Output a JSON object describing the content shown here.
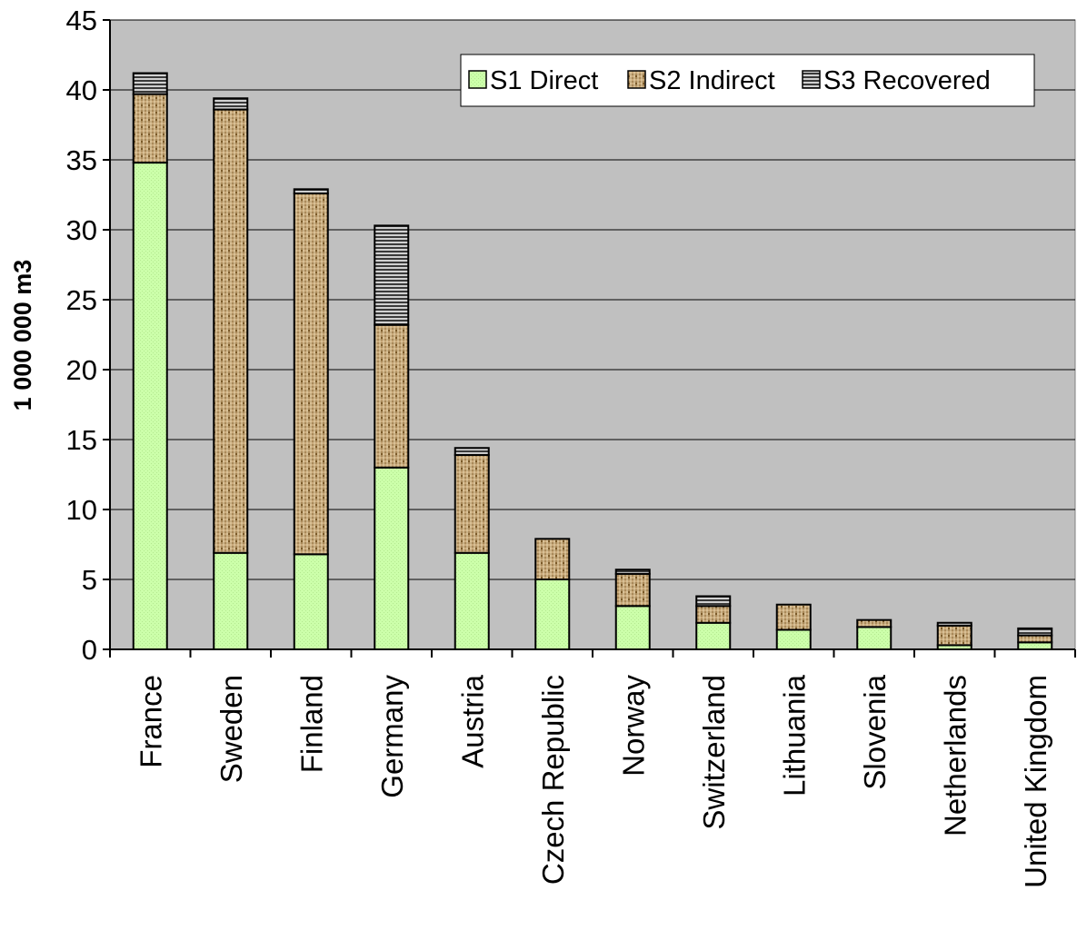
{
  "chart_data": {
    "type": "bar",
    "stacked": true,
    "title": "",
    "xlabel": "",
    "ylabel": "1 000 000 m3",
    "ylim": [
      0,
      45
    ],
    "yticks": [
      0,
      5,
      10,
      15,
      20,
      25,
      30,
      35,
      40,
      45
    ],
    "grid": true,
    "legend_position": "top-right",
    "categories": [
      "France",
      "Sweden",
      "Finland",
      "Germany",
      "Austria",
      "Czech Republic",
      "Norway",
      "Switzerland",
      "Lithuania",
      "Slovenia",
      "Netherlands",
      "United Kingdom"
    ],
    "series": [
      {
        "name": "S1 Direct",
        "color": "#ccffaa",
        "values": [
          34.8,
          6.9,
          6.8,
          13.0,
          6.9,
          5.0,
          3.1,
          1.9,
          1.4,
          1.6,
          0.3,
          0.5
        ]
      },
      {
        "name": "S2 Indirect",
        "color": "#c8a878",
        "values": [
          4.9,
          31.7,
          25.8,
          10.2,
          7.0,
          2.9,
          2.3,
          1.2,
          1.8,
          0.5,
          1.4,
          0.5
        ]
      },
      {
        "name": "S3 Recovered",
        "color": "#8c8c8c",
        "values": [
          1.5,
          0.8,
          0.3,
          7.1,
          0.5,
          0.0,
          0.3,
          0.7,
          0.0,
          0.0,
          0.2,
          0.5
        ]
      }
    ]
  }
}
